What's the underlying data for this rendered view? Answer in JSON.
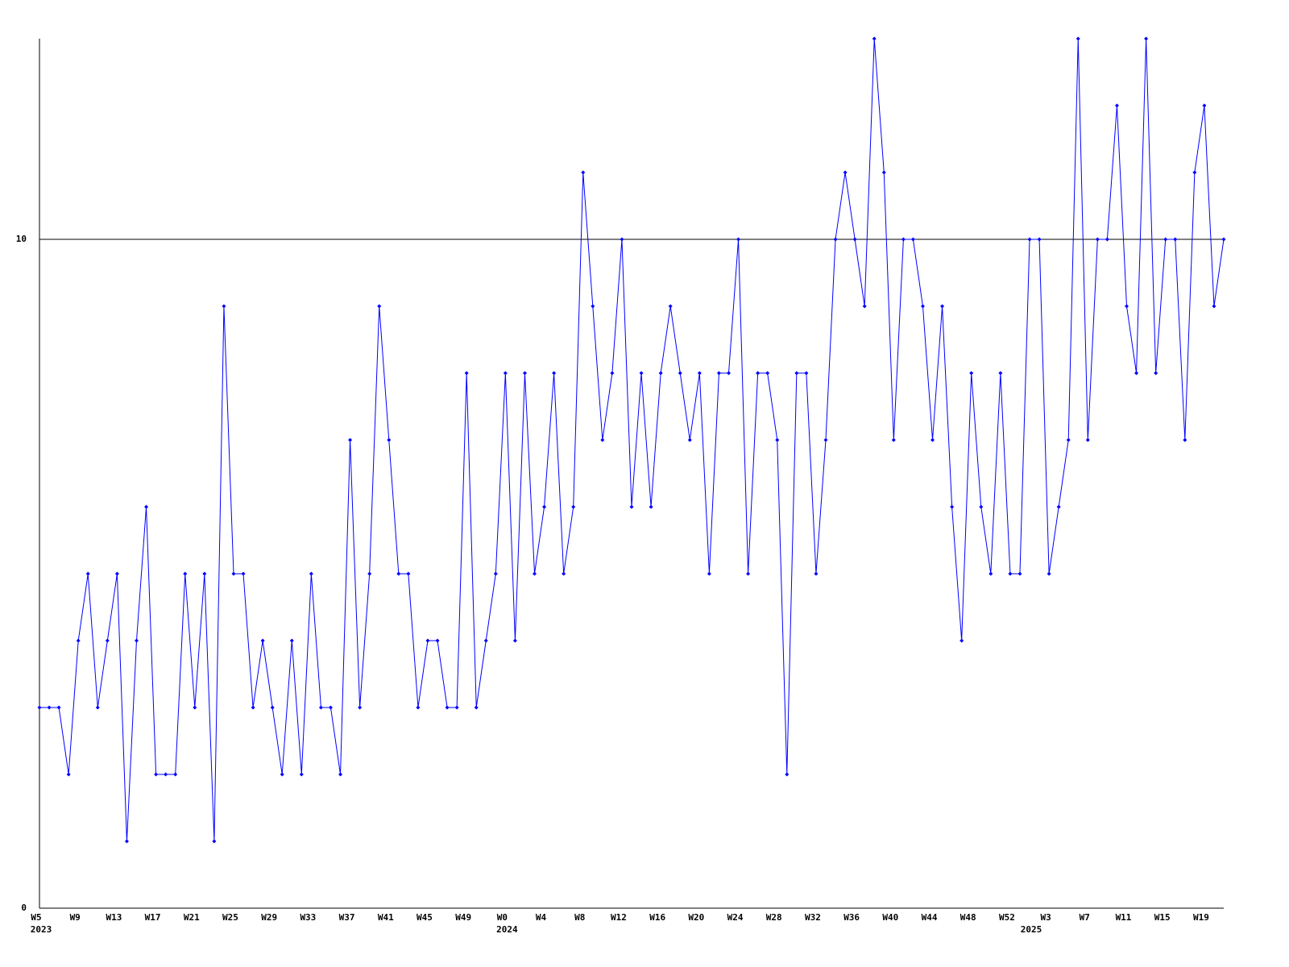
{
  "chart_data": {
    "type": "line",
    "categories": [
      "W5",
      null,
      null,
      null,
      "W9",
      null,
      null,
      null,
      "W13",
      null,
      null,
      null,
      "W17",
      null,
      null,
      null,
      "W21",
      null,
      null,
      null,
      "W25",
      null,
      null,
      null,
      "W29",
      null,
      null,
      null,
      "W33",
      null,
      null,
      null,
      "W37",
      null,
      null,
      null,
      "W41",
      null,
      null,
      null,
      "W45",
      null,
      null,
      null,
      "W49",
      null,
      null,
      null,
      "W0",
      null,
      null,
      null,
      "W4",
      null,
      null,
      null,
      "W8",
      null,
      null,
      null,
      "W12",
      null,
      null,
      null,
      "W16",
      null,
      null,
      null,
      "W20",
      null,
      null,
      null,
      "W24",
      null,
      null,
      null,
      "W28",
      null,
      null,
      null,
      "W32",
      null,
      null,
      null,
      "W36",
      null,
      null,
      null,
      "W40",
      null,
      null,
      null,
      "W44",
      null,
      null,
      null,
      "W48",
      null,
      null,
      null,
      "W52",
      null,
      null,
      null,
      "W3",
      null,
      null,
      null,
      "W7",
      null,
      null,
      null,
      "W11",
      null,
      null,
      null,
      "W15",
      null,
      null,
      null,
      "W19",
      null,
      null
    ],
    "years": [
      "2023",
      null,
      null,
      null,
      null,
      null,
      null,
      null,
      null,
      null,
      null,
      null,
      null,
      null,
      null,
      null,
      null,
      null,
      null,
      null,
      null,
      null,
      null,
      null,
      null,
      null,
      null,
      null,
      null,
      null,
      null,
      null,
      null,
      null,
      null,
      null,
      null,
      null,
      null,
      null,
      null,
      null,
      null,
      null,
      null,
      null,
      null,
      null,
      "2024",
      null,
      null,
      null,
      null,
      null,
      null,
      null,
      null,
      null,
      null,
      null,
      null,
      null,
      null,
      null,
      null,
      null,
      null,
      null,
      null,
      null,
      null,
      null,
      null,
      null,
      null,
      null,
      null,
      null,
      null,
      null,
      null,
      null,
      null,
      null,
      null,
      null,
      null,
      null,
      null,
      null,
      null,
      null,
      null,
      null,
      null,
      null,
      null,
      null,
      null,
      null,
      null,
      null,
      "2025",
      null,
      null,
      null,
      null,
      null,
      null,
      null,
      null,
      null,
      null,
      null,
      null,
      null,
      null,
      null,
      null,
      null,
      null,
      null,
      null
    ],
    "series": [
      {
        "color": "#0000ff",
        "values": [
          3,
          3,
          3,
          2,
          4,
          5,
          3,
          4,
          5,
          1,
          4,
          6,
          2,
          2,
          2,
          5,
          3,
          5,
          1,
          9,
          5,
          5,
          3,
          4,
          3,
          2,
          4,
          2,
          5,
          3,
          3,
          2,
          7,
          3,
          5,
          9,
          7,
          5,
          5,
          3,
          4,
          4,
          3,
          3,
          8,
          3,
          4,
          5,
          8,
          4,
          8,
          5,
          6,
          8,
          5,
          6,
          11,
          9,
          7,
          8,
          10,
          6,
          8,
          6,
          8,
          9,
          8,
          7,
          8,
          5,
          8,
          8,
          10,
          5,
          8,
          8,
          7,
          2,
          8,
          8,
          5,
          7,
          10,
          11,
          10,
          9,
          13,
          11,
          7,
          10,
          10,
          9,
          7,
          9,
          6,
          4,
          8,
          6,
          5,
          8,
          5,
          5,
          10,
          10,
          5,
          6,
          7,
          13,
          7,
          10,
          10,
          12,
          9,
          8,
          13,
          8,
          10,
          10,
          7,
          11,
          12,
          9,
          10
        ]
      }
    ],
    "ylim": [
      0,
      13
    ],
    "yticks": [
      0,
      10
    ],
    "grid": true
  }
}
